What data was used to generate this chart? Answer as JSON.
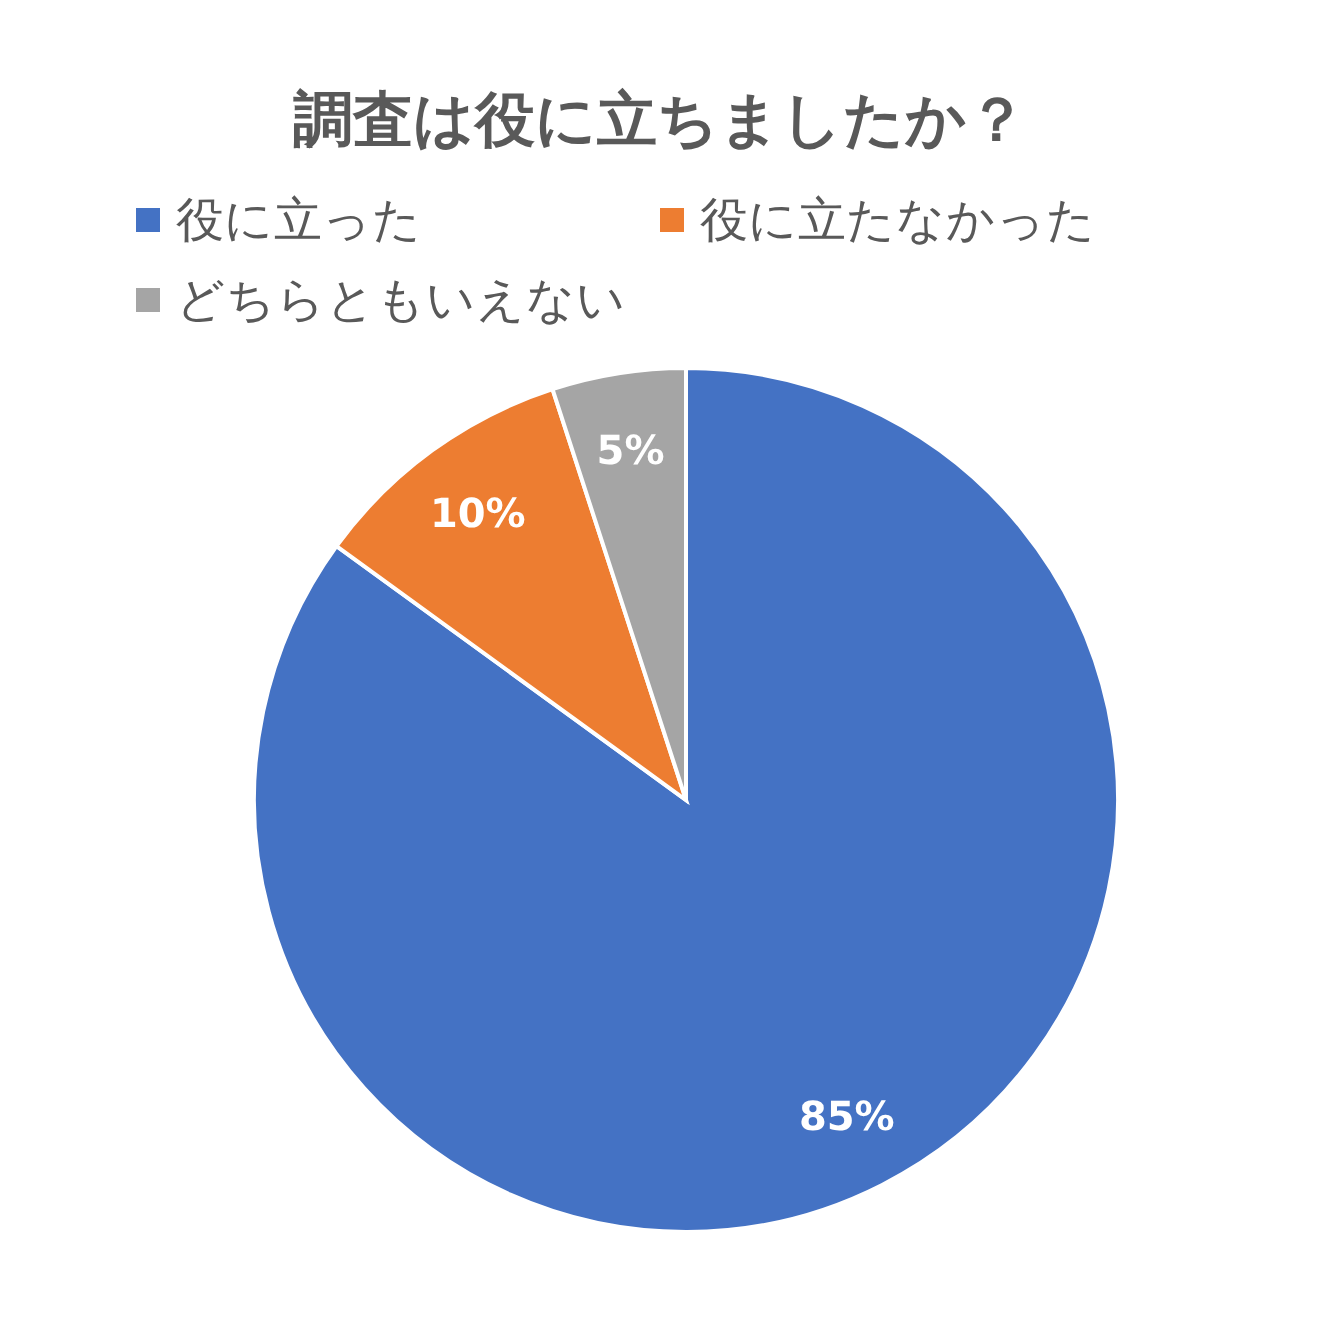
{
  "chart_data": {
    "type": "pie",
    "title": "調査は役に立ちましたか？",
    "categories": [
      "役に立った",
      "役に立たなかった",
      "どちらともいえない"
    ],
    "values": [
      85,
      10,
      5
    ],
    "colors": [
      "#4472c4",
      "#ed7d31",
      "#a5a5a5"
    ],
    "value_labels": [
      "85%",
      "10%",
      "5%"
    ],
    "legend": "top"
  }
}
